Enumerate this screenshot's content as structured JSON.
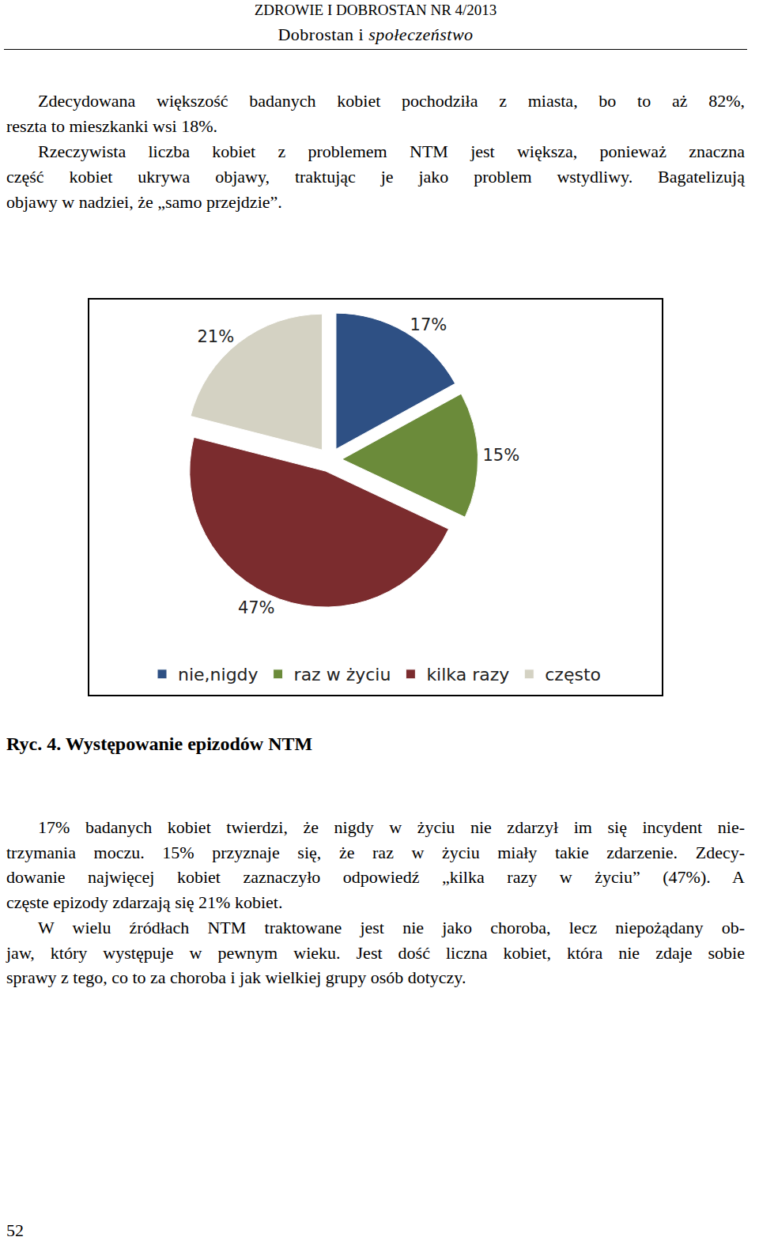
{
  "header": {
    "journal": "ZDROWIE I DOBROSTAN NR 4/2013",
    "section": "Dobrostan i",
    "section_italic": "społeczeństwo"
  },
  "paragraphs_before": [
    [
      "Zdecydowana większość badanych kobiet pochodziła z miasta, bo to aż 82%,",
      "reszta to mieszkanki wsi 18%."
    ],
    [
      "Rzeczywista liczba kobiet z problemem NTM jest większa, ponieważ znaczna",
      "część kobiet ukrywa objawy, traktując je jako problem wstydliwy. Bagatelizują",
      "objawy w nadziei, że „samo przejdzie”."
    ]
  ],
  "chart_data": {
    "type": "pie",
    "categories": [
      "nie,nigdy",
      "raz w życiu",
      "kilka razy",
      "często"
    ],
    "values": [
      17,
      15,
      47,
      21
    ],
    "value_labels": [
      "17%",
      "15%",
      "47%",
      "21%"
    ],
    "colors": [
      "#2e5084",
      "#6b8b3a",
      "#7b2c2e",
      "#d4d2c3"
    ],
    "legend": "bottom",
    "data_labels": true
  },
  "caption": "Ryc. 4. Występowanie epizodów NTM",
  "paragraphs_after": [
    [
      "17% badanych kobiet twierdzi, że nigdy w życiu nie zdarzył im się incydent nie-",
      "trzymania moczu. 15% przyznaje się, że raz w życiu miały takie zdarzenie. Zdecy-",
      "dowanie najwięcej kobiet zaznaczyło odpowiedź „kilka razy w życiu” (47%). A",
      "częste epizody zdarzają się 21% kobiet."
    ],
    [
      "W wielu źródłach NTM traktowane jest nie jako choroba, lecz niepożądany ob-",
      "jaw, który występuje w pewnym wieku. Jest dość liczna kobiet, która nie zdaje sobie",
      "sprawy z tego, co to za choroba i jak wielkiej grupy osób dotyczy."
    ]
  ],
  "page_number": 52
}
